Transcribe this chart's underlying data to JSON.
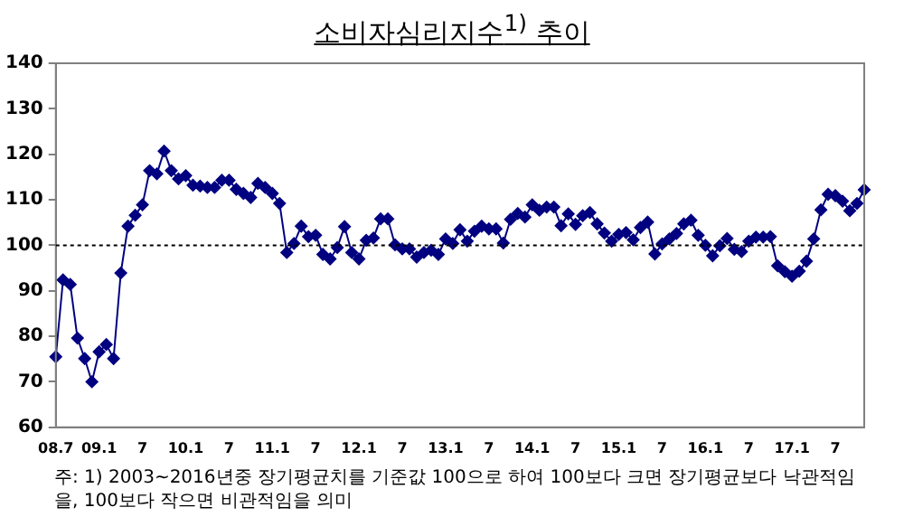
{
  "chart_data": {
    "type": "line",
    "title": "소비자심리지수$^{1)}$ 추이",
    "categories": [
      "08.7",
      null,
      null,
      null,
      null,
      null,
      "09.1",
      null,
      null,
      null,
      null,
      null,
      "7",
      null,
      null,
      null,
      null,
      null,
      "10.1",
      null,
      null,
      null,
      null,
      null,
      "7",
      null,
      null,
      null,
      null,
      null,
      "11.1",
      null,
      null,
      null,
      null,
      null,
      "7",
      null,
      null,
      null,
      null,
      null,
      "12.1",
      null,
      null,
      null,
      null,
      null,
      "7",
      null,
      null,
      null,
      null,
      null,
      "13.1",
      null,
      null,
      null,
      null,
      null,
      "7",
      null,
      null,
      null,
      null,
      null,
      "14.1",
      null,
      null,
      null,
      null,
      null,
      "7",
      null,
      null,
      null,
      null,
      null,
      "15.1",
      null,
      null,
      null,
      null,
      null,
      "7",
      null,
      null,
      null,
      null,
      null,
      "16.1",
      null,
      null,
      null,
      null,
      null,
      "7",
      null,
      null,
      null,
      null,
      null,
      "17.1",
      null,
      null,
      null,
      null,
      null,
      "7",
      null,
      null,
      null,
      null
    ],
    "series": [
      {
        "color": "#000080",
        "values": [
          75.5,
          92.4,
          91.4,
          79.6,
          75.1,
          70.0,
          76.6,
          78.2,
          75.1,
          93.9,
          104.2,
          106.6,
          108.9,
          116.4,
          115.7,
          120.7,
          116.4,
          114.6,
          115.3,
          113.2,
          113.0,
          112.7,
          112.7,
          114.3,
          114.3,
          112.3,
          111.4,
          110.5,
          113.6,
          112.7,
          111.4,
          109.2,
          98.4,
          100.4,
          104.2,
          101.9,
          102.2,
          98.0,
          97.0,
          99.5,
          104.1,
          98.4,
          97.0,
          101.1,
          101.6,
          105.8,
          105.8,
          100.1,
          99.2,
          99.2,
          97.4,
          98.4,
          98.9,
          98.0,
          101.4,
          100.4,
          103.4,
          100.9,
          103.1,
          104.2,
          103.6,
          103.6,
          100.5,
          105.7,
          107.0,
          106.2,
          108.9,
          107.7,
          108.4,
          108.4,
          104.3,
          106.9,
          104.6,
          106.5,
          107.2,
          104.7,
          102.7,
          100.9,
          102.4,
          102.8,
          101.2,
          103.9,
          105.1,
          98.1,
          100.3,
          101.4,
          102.6,
          104.7,
          105.5,
          102.2,
          100.0,
          97.7,
          99.9,
          101.5,
          99.1,
          98.6,
          100.9,
          101.8,
          101.8,
          101.9,
          95.5,
          94.2,
          93.2,
          94.3,
          96.5,
          101.4,
          107.8,
          111.2,
          110.9,
          109.7,
          107.6,
          109.2,
          112.2
        ]
      }
    ],
    "ylim": [
      60,
      140
    ],
    "yticks": [
      60,
      70,
      80,
      90,
      100,
      110,
      120,
      130,
      140
    ],
    "ref_lines": [
      {
        "axis": "y",
        "value": 100,
        "line_style": "dotted",
        "color": "#000000"
      }
    ],
    "marker": "diamond",
    "line_style": "solid",
    "grid": false,
    "legend": false,
    "annotations": [
      "주: 1) 2003~2016년중 장기평균치를 기준값 100으로 하여 100보다 크면 장기평균보다 낙관적임을, 100보다 작으면 비관적임을 의미"
    ]
  }
}
